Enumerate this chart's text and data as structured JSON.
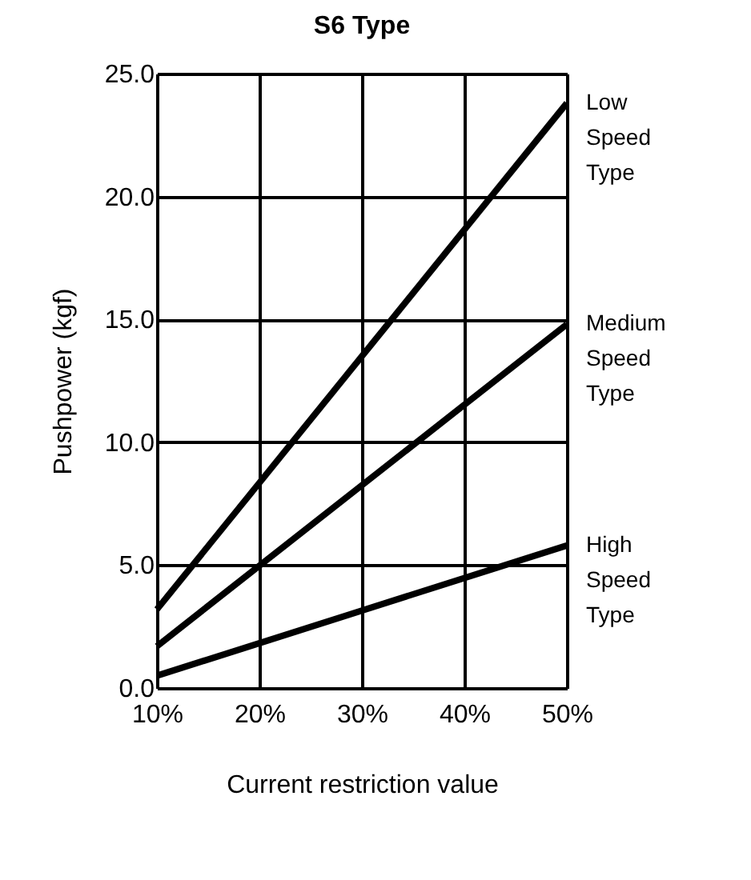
{
  "chart_data": {
    "type": "line",
    "title": "S6 Type",
    "xlabel": "Current restriction value",
    "ylabel": "Pushpower (kgf)",
    "x": [
      10,
      50
    ],
    "series": [
      {
        "name": "Low Speed Type",
        "color": "#000000",
        "values": [
          3.2,
          23.8
        ]
      },
      {
        "name": "Medium Speed Type",
        "color": "#000000",
        "values": [
          1.7,
          14.8
        ]
      },
      {
        "name": "High Speed Type",
        "color": "#000000",
        "values": [
          0.5,
          5.8
        ]
      }
    ],
    "xlim": [
      10,
      50
    ],
    "xticks": [
      {
        "value": 10,
        "label": "10%"
      },
      {
        "value": 20,
        "label": "20%"
      },
      {
        "value": 30,
        "label": "30%"
      },
      {
        "value": 40,
        "label": "40%"
      },
      {
        "value": 50,
        "label": "50%"
      }
    ],
    "ylim": [
      0,
      25
    ],
    "yticks": [
      {
        "value": 0,
        "label": "0.0"
      },
      {
        "value": 5,
        "label": "5.0"
      },
      {
        "value": 10,
        "label": "10.0"
      },
      {
        "value": 15,
        "label": "15.0"
      },
      {
        "value": 20,
        "label": "20.0"
      },
      {
        "value": 25,
        "label": "25.0"
      }
    ],
    "grid": true,
    "marker": "none",
    "line_style": "solid"
  }
}
